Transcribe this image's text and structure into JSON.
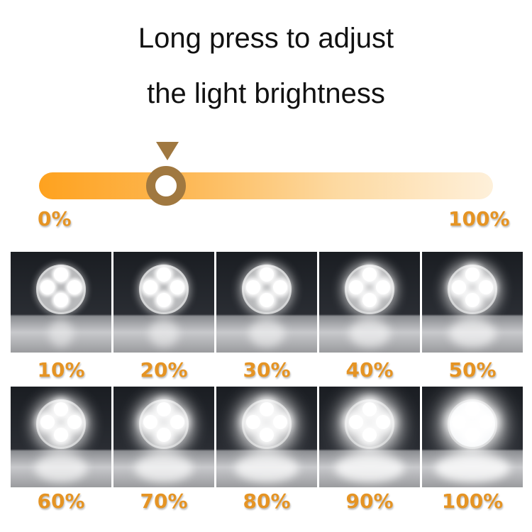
{
  "heading": {
    "line1": "Long press to adjust",
    "line2": "the light brightness"
  },
  "slider": {
    "min_label": "0%",
    "max_label": "100%",
    "value_percent": 28,
    "colors": {
      "fill_start": "#fea21f",
      "fill_end": "#fef0da",
      "knob": "#a07840",
      "label": "#e59424"
    }
  },
  "panels": [
    {
      "label": "10%",
      "level": 0.1
    },
    {
      "label": "20%",
      "level": 0.2
    },
    {
      "label": "30%",
      "level": 0.3
    },
    {
      "label": "40%",
      "level": 0.4
    },
    {
      "label": "50%",
      "level": 0.5
    },
    {
      "label": "60%",
      "level": 0.6
    },
    {
      "label": "70%",
      "level": 0.7
    },
    {
      "label": "80%",
      "level": 0.8
    },
    {
      "label": "90%",
      "level": 0.9
    },
    {
      "label": "100%",
      "level": 1.0
    }
  ]
}
